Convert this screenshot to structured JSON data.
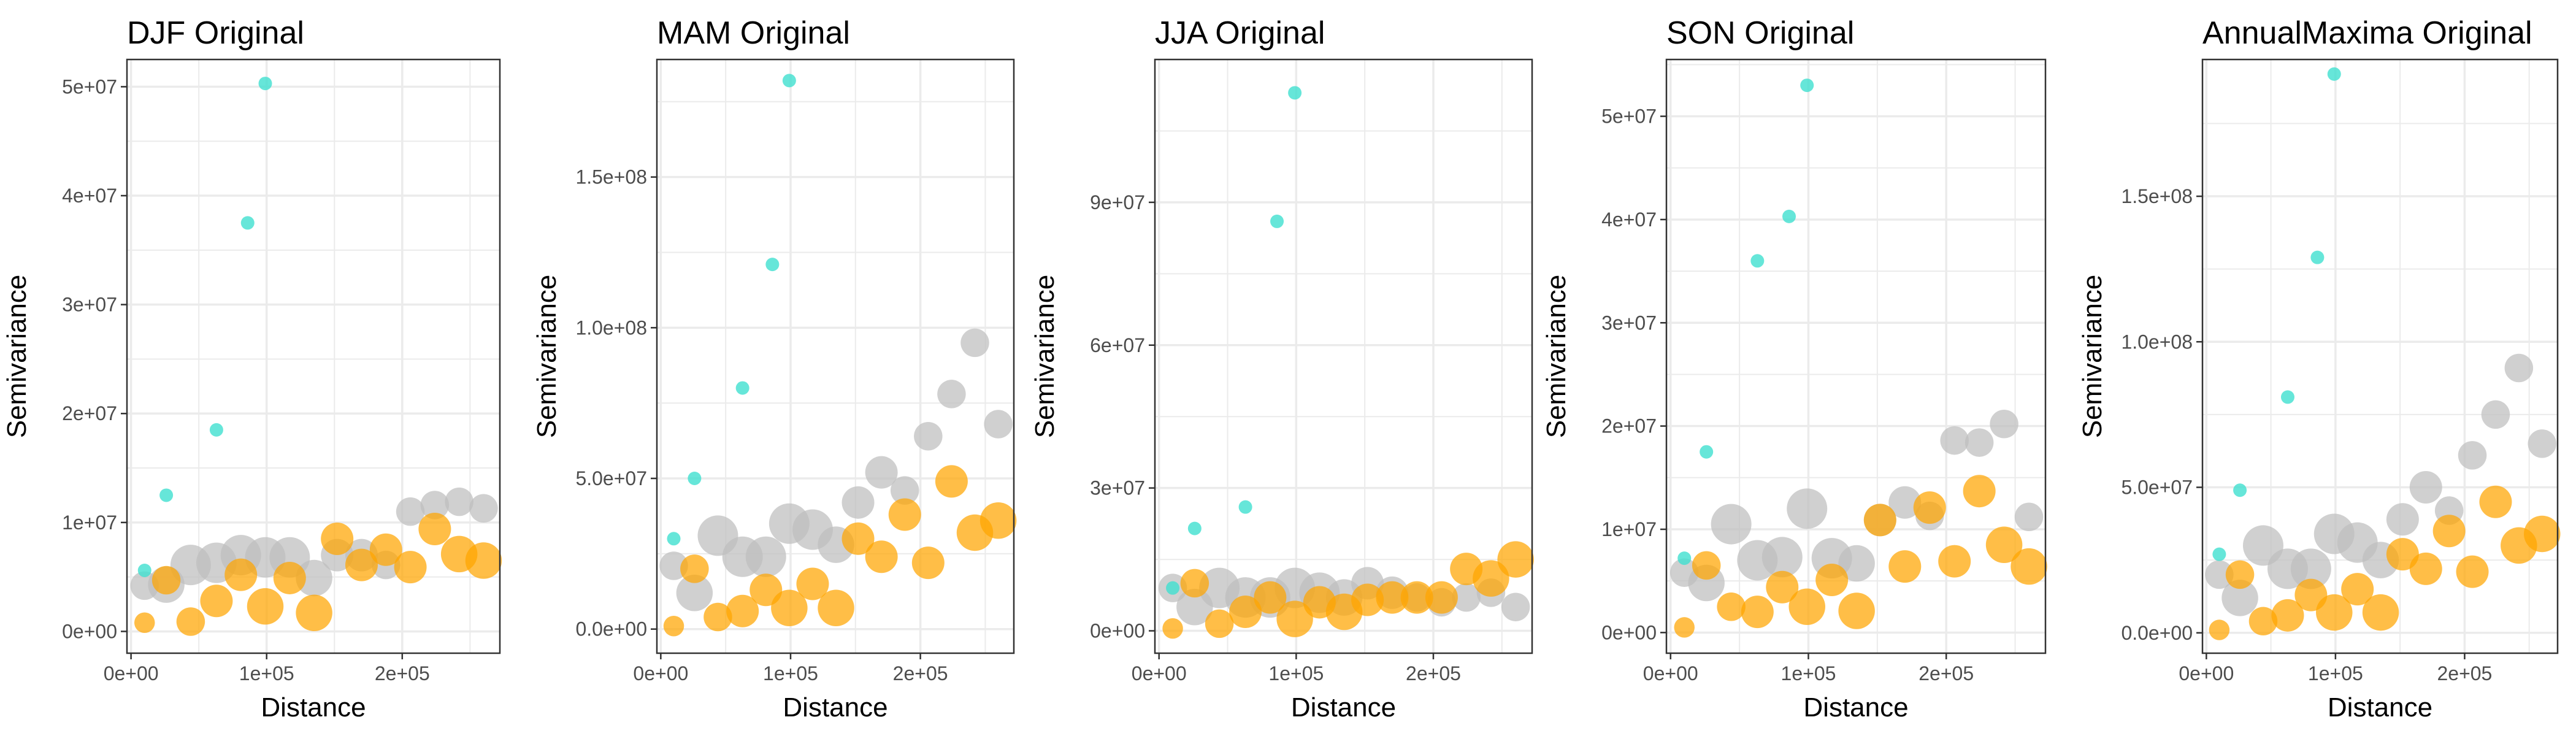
{
  "colors": {
    "near": "#40E0D0",
    "original": "#BEBEBE",
    "simulated": "#FFA500",
    "grid": "#EBEBEB",
    "border": "#333333"
  },
  "chart_data": [
    {
      "type": "scatter",
      "title": "DJF Original",
      "xlabel": "Distance",
      "ylabel": "Semivariance",
      "xlim": [
        -3000,
        272000
      ],
      "ylim": [
        -2000000,
        52500000
      ],
      "xticks": [
        0,
        100000,
        200000
      ],
      "xtick_labels": [
        "0e+00",
        "1e+05",
        "2e+05"
      ],
      "yticks": [
        0,
        10000000,
        20000000,
        30000000,
        40000000,
        50000000
      ],
      "ytick_labels": [
        "0e+00",
        "1e+07",
        "2e+07",
        "3e+07",
        "4e+07",
        "5e+07"
      ],
      "grid": true,
      "series": [
        {
          "role": "near",
          "x": [
            10000,
            26000,
            63000,
            86000,
            99000
          ],
          "y": [
            5600000,
            12500000,
            18500000,
            37500000,
            50300000
          ],
          "size": [
            1,
            1,
            1,
            1,
            1
          ]
        },
        {
          "role": "original",
          "x": [
            10000,
            26000,
            44000,
            63000,
            81000,
            99000,
            117000,
            135000,
            152000,
            170000,
            188000,
            206000,
            224000,
            242000,
            260000
          ],
          "y": [
            4200000,
            4300000,
            6100000,
            6300000,
            7000000,
            6800000,
            6800000,
            4900000,
            7000000,
            7000000,
            6100000,
            11000000,
            11600000,
            11900000,
            11300000
          ],
          "size": [
            2.5,
            3.5,
            4,
            4,
            4,
            4,
            4,
            3.5,
            3,
            3,
            2.5,
            2.5,
            2.5,
            2.5,
            2.5
          ]
        },
        {
          "role": "simulated",
          "x": [
            10000,
            26000,
            44000,
            63000,
            81000,
            99000,
            117000,
            135000,
            152000,
            170000,
            188000,
            206000,
            224000,
            242000,
            260000
          ],
          "y": [
            800000,
            4700000,
            900000,
            2800000,
            5200000,
            2300000,
            4900000,
            1700000,
            8500000,
            6100000,
            7500000,
            5900000,
            9400000,
            7100000,
            6500000
          ],
          "size": [
            1.5,
            2.5,
            2.5,
            3,
            3,
            3.5,
            3,
            3.5,
            3,
            3,
            3,
            3,
            3,
            3.5,
            3.5
          ]
        }
      ]
    },
    {
      "type": "scatter",
      "title": "MAM Original",
      "xlabel": "Distance",
      "ylabel": "Semivariance",
      "xlim": [
        -3000,
        272000
      ],
      "ylim": [
        -8000000,
        189000000
      ],
      "xticks": [
        0,
        100000,
        200000
      ],
      "xtick_labels": [
        "0e+00",
        "1e+05",
        "2e+05"
      ],
      "yticks": [
        0,
        50000000,
        100000000,
        150000000
      ],
      "ytick_labels": [
        "0.0e+00",
        "5.0e+07",
        "1.0e+08",
        "1.5e+08"
      ],
      "grid": true,
      "series": [
        {
          "role": "near",
          "x": [
            10000,
            26000,
            63000,
            86000,
            99000
          ],
          "y": [
            30000000,
            50000000,
            80000000,
            121000000,
            182000000
          ],
          "size": [
            1,
            1,
            1,
            1,
            1
          ]
        },
        {
          "role": "original",
          "x": [
            10000,
            26000,
            44000,
            63000,
            81000,
            99000,
            117000,
            135000,
            152000,
            170000,
            188000,
            206000,
            224000,
            242000,
            260000
          ],
          "y": [
            21000000,
            12000000,
            31000000,
            24000000,
            24000000,
            35000000,
            33000000,
            28000000,
            42000000,
            52000000,
            46000000,
            64000000,
            78000000,
            95000000,
            68000000
          ],
          "size": [
            2.5,
            3.5,
            4,
            4,
            4,
            4,
            4,
            3.5,
            3,
            3,
            2.5,
            2.5,
            2.5,
            2.5,
            2.5
          ]
        },
        {
          "role": "simulated",
          "x": [
            10000,
            26000,
            44000,
            63000,
            81000,
            99000,
            117000,
            135000,
            152000,
            170000,
            188000,
            206000,
            224000,
            242000,
            260000
          ],
          "y": [
            1000000,
            20000000,
            4000000,
            6000000,
            13000000,
            7000000,
            15000000,
            7000000,
            30000000,
            24000000,
            38000000,
            22000000,
            49000000,
            32000000,
            36000000
          ],
          "size": [
            1.5,
            2.5,
            2.5,
            3,
            3,
            3.5,
            3,
            3.5,
            3,
            3,
            3,
            3,
            3,
            3.5,
            3.5
          ]
        }
      ]
    },
    {
      "type": "scatter",
      "title": "JJA Original",
      "xlabel": "Distance",
      "ylabel": "Semivariance",
      "xlim": [
        -3000,
        272000
      ],
      "ylim": [
        -4700000,
        120000000
      ],
      "xticks": [
        0,
        100000,
        200000
      ],
      "xtick_labels": [
        "0e+00",
        "1e+05",
        "2e+05"
      ],
      "yticks": [
        0,
        30000000,
        60000000,
        90000000
      ],
      "ytick_labels": [
        "0e+00",
        "3e+07",
        "6e+07",
        "9e+07"
      ],
      "grid": true,
      "series": [
        {
          "role": "near",
          "x": [
            10000,
            26000,
            63000,
            86000,
            99000
          ],
          "y": [
            9000000,
            21500000,
            26000000,
            86000000,
            113000000
          ],
          "size": [
            1,
            1,
            1,
            1,
            1
          ]
        },
        {
          "role": "original",
          "x": [
            10000,
            26000,
            44000,
            63000,
            81000,
            99000,
            117000,
            135000,
            152000,
            170000,
            188000,
            206000,
            224000,
            242000,
            260000
          ],
          "y": [
            9000000,
            5000000,
            9000000,
            7000000,
            7000000,
            9000000,
            8000000,
            7000000,
            10000000,
            8000000,
            7000000,
            6000000,
            7000000,
            8000000,
            5000000
          ],
          "size": [
            2.5,
            3.5,
            4,
            4,
            4,
            4,
            4,
            3.5,
            3,
            3,
            2.5,
            2.5,
            2.5,
            2.5,
            2.5
          ]
        },
        {
          "role": "simulated",
          "x": [
            10000,
            26000,
            44000,
            63000,
            81000,
            99000,
            117000,
            135000,
            152000,
            170000,
            188000,
            206000,
            224000,
            242000,
            260000
          ],
          "y": [
            500000,
            10000000,
            1500000,
            4000000,
            7000000,
            2500000,
            6000000,
            4000000,
            6500000,
            7000000,
            7000000,
            7000000,
            13000000,
            11000000,
            15000000
          ],
          "size": [
            1.5,
            2.5,
            2.5,
            3,
            3,
            3.5,
            3,
            3.5,
            3,
            3,
            3,
            3,
            3,
            3.5,
            3.5
          ]
        }
      ]
    },
    {
      "type": "scatter",
      "title": "SON Original",
      "xlabel": "Distance",
      "ylabel": "Semivariance",
      "xlim": [
        -3000,
        272000
      ],
      "ylim": [
        -2000000,
        55500000
      ],
      "xticks": [
        0,
        100000,
        200000
      ],
      "xtick_labels": [
        "0e+00",
        "1e+05",
        "2e+05"
      ],
      "yticks": [
        0,
        10000000,
        20000000,
        30000000,
        40000000,
        50000000
      ],
      "ytick_labels": [
        "0e+00",
        "1e+07",
        "2e+07",
        "3e+07",
        "4e+07",
        "5e+07"
      ],
      "grid": true,
      "series": [
        {
          "role": "near",
          "x": [
            10000,
            26000,
            63000,
            86000,
            99000
          ],
          "y": [
            7200000,
            17500000,
            36000000,
            40300000,
            53000000
          ],
          "size": [
            1,
            1,
            1,
            1,
            1
          ]
        },
        {
          "role": "original",
          "x": [
            10000,
            26000,
            44000,
            63000,
            81000,
            99000,
            117000,
            135000,
            152000,
            170000,
            188000,
            206000,
            224000,
            242000,
            260000
          ],
          "y": [
            5800000,
            4800000,
            10500000,
            7000000,
            7300000,
            12000000,
            7200000,
            6700000,
            10900000,
            12600000,
            11300000,
            18600000,
            18400000,
            20200000,
            11200000
          ],
          "size": [
            2.5,
            3.5,
            4,
            4,
            4,
            4,
            4,
            3.5,
            3,
            3,
            2.5,
            2.5,
            2.5,
            2.5,
            2.5
          ]
        },
        {
          "role": "simulated",
          "x": [
            10000,
            26000,
            44000,
            63000,
            81000,
            99000,
            117000,
            135000,
            152000,
            170000,
            188000,
            206000,
            224000,
            242000,
            260000
          ],
          "y": [
            500000,
            6500000,
            2500000,
            2000000,
            4400000,
            2500000,
            5100000,
            2100000,
            10900000,
            6400000,
            12100000,
            6900000,
            13700000,
            8500000,
            6400000
          ],
          "size": [
            1.5,
            2.5,
            2.5,
            3,
            3,
            3.5,
            3,
            3.5,
            3,
            3,
            3,
            3,
            3,
            3.5,
            3.5
          ]
        }
      ]
    },
    {
      "type": "scatter",
      "title": "AnnualMaxima Original",
      "xlabel": "Distance",
      "ylabel": "Semivariance",
      "xlim": [
        -3000,
        272000
      ],
      "ylim": [
        -7000000,
        197000000
      ],
      "xticks": [
        0,
        100000,
        200000
      ],
      "xtick_labels": [
        "0e+00",
        "1e+05",
        "2e+05"
      ],
      "yticks": [
        0,
        50000000,
        100000000,
        150000000
      ],
      "ytick_labels": [
        "0.0e+00",
        "5.0e+07",
        "1.0e+08",
        "1.5e+08"
      ],
      "grid": true,
      "series": [
        {
          "role": "near",
          "x": [
            10000,
            26000,
            63000,
            86000,
            99000
          ],
          "y": [
            27000000,
            49000000,
            81000000,
            129000000,
            192000000
          ],
          "size": [
            1,
            1,
            1,
            1,
            1
          ]
        },
        {
          "role": "original",
          "x": [
            10000,
            26000,
            44000,
            63000,
            81000,
            99000,
            117000,
            135000,
            152000,
            170000,
            188000,
            206000,
            224000,
            242000,
            260000
          ],
          "y": [
            20000000,
            12000000,
            30000000,
            22000000,
            22000000,
            34000000,
            31000000,
            25000000,
            39000000,
            50000000,
            42000000,
            61000000,
            75000000,
            91000000,
            65000000
          ],
          "size": [
            2.5,
            3.5,
            4,
            4,
            4,
            4,
            4,
            3.5,
            3,
            3,
            2.5,
            2.5,
            2.5,
            2.5,
            2.5
          ]
        },
        {
          "role": "simulated",
          "x": [
            10000,
            26000,
            44000,
            63000,
            81000,
            99000,
            117000,
            135000,
            152000,
            170000,
            188000,
            206000,
            224000,
            242000,
            260000
          ],
          "y": [
            1000000,
            20000000,
            4000000,
            6000000,
            13000000,
            7000000,
            15000000,
            7000000,
            27000000,
            22000000,
            35000000,
            21000000,
            45000000,
            30000000,
            34000000
          ],
          "size": [
            1.5,
            2.5,
            2.5,
            3,
            3,
            3.5,
            3,
            3.5,
            3,
            3,
            3,
            3,
            3,
            3.5,
            3.5
          ]
        }
      ]
    }
  ]
}
